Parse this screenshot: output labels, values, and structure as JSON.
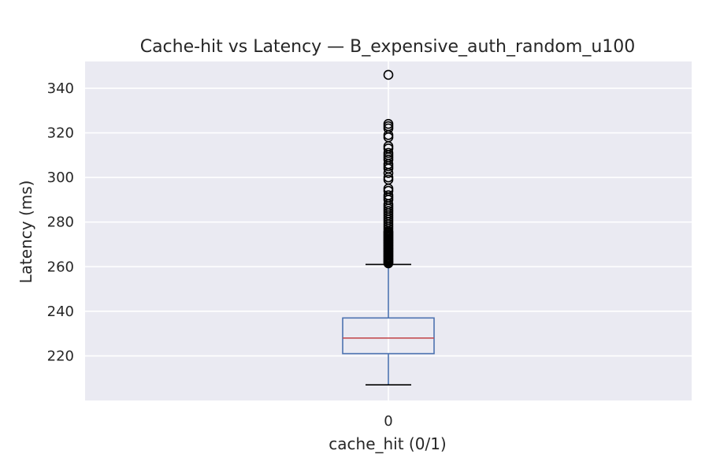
{
  "chart_data": {
    "type": "box",
    "title": "Cache-hit vs Latency — B_expensive_auth_random_u100",
    "xlabel": "cache_hit (0/1)",
    "ylabel": "Latency (ms)",
    "categories": [
      "0"
    ],
    "ylim": [
      200,
      352
    ],
    "yticks": [
      220,
      240,
      260,
      280,
      300,
      320,
      340
    ],
    "grid": true,
    "boxes": [
      {
        "category": "0",
        "whisker_low": 207,
        "q1": 221,
        "median": 228,
        "q3": 237,
        "whisker_high": 261,
        "outliers": [
          261.5,
          262,
          262.5,
          263,
          263.5,
          264,
          264.5,
          265,
          265.5,
          266,
          266.5,
          267,
          267.5,
          268,
          268.5,
          269,
          269.5,
          270,
          270.5,
          271,
          271.5,
          272,
          272.5,
          273,
          273.5,
          274,
          274.5,
          275,
          275.5,
          276,
          277,
          278,
          279,
          280,
          281,
          282,
          283,
          284,
          285,
          286,
          287,
          288,
          290,
          291,
          292,
          294,
          295,
          299,
          300,
          302,
          304,
          305,
          306,
          308,
          309,
          310,
          311,
          313,
          314,
          318,
          319,
          322,
          323,
          324,
          346
        ]
      }
    ],
    "colors": {
      "background": "#eaeaf2",
      "grid": "#ffffff",
      "box": "#4c72b0",
      "median": "#c44e52",
      "whisker_cap": "#000000",
      "outlier": "#000000"
    }
  }
}
